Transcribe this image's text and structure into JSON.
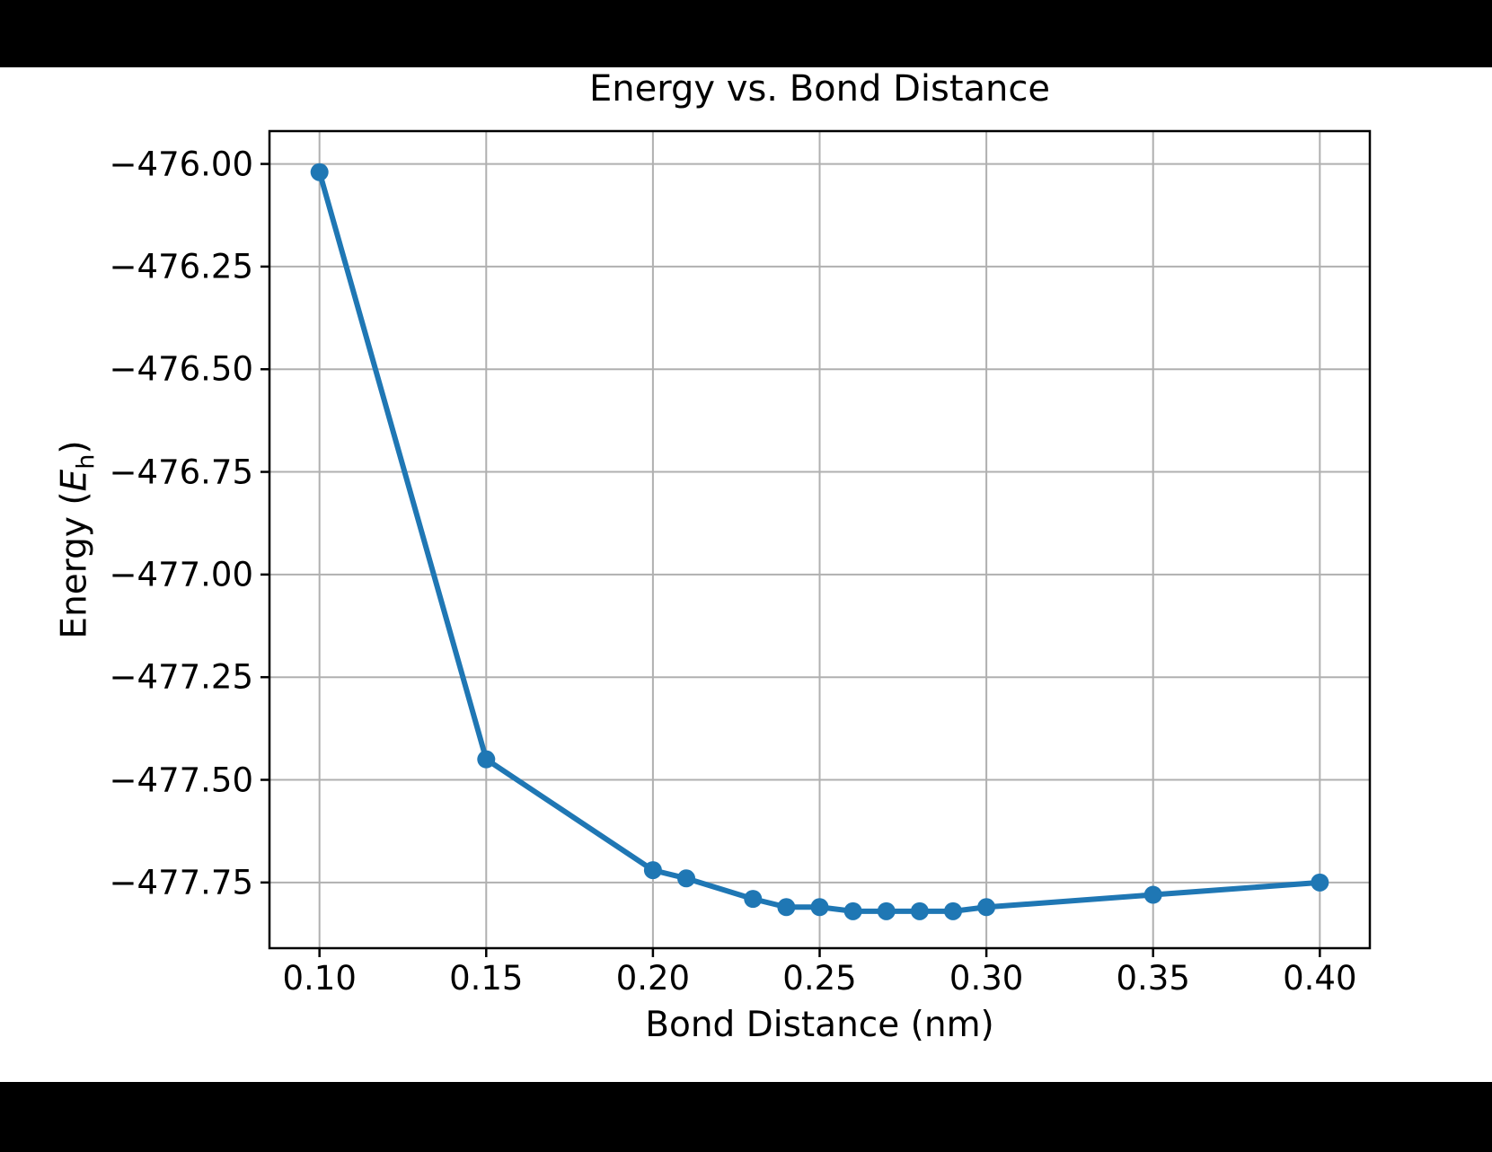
{
  "figure": {
    "outer_background": "#000000",
    "background": "#ffffff",
    "title": "Energy vs. Bond Distance",
    "xlabel": "Bond Distance (nm)",
    "ylabel": {
      "prefix": "Energy (",
      "symbol": "E",
      "subscript": "h",
      "suffix": ")"
    }
  },
  "chart_data": {
    "type": "line",
    "title": "Energy vs. Bond Distance",
    "xlabel": "Bond Distance (nm)",
    "ylabel": "Energy (E_h)",
    "x": [
      0.1,
      0.15,
      0.2,
      0.21,
      0.23,
      0.24,
      0.25,
      0.26,
      0.27,
      0.28,
      0.29,
      0.3,
      0.35,
      0.4
    ],
    "y": [
      -476.02,
      -477.45,
      -477.72,
      -477.74,
      -477.79,
      -477.81,
      -477.81,
      -477.82,
      -477.82,
      -477.82,
      -477.82,
      -477.81,
      -477.78,
      -477.75
    ],
    "xlim": [
      0.085,
      0.415
    ],
    "ylim": [
      -477.91,
      -475.92
    ],
    "xticks": [
      0.1,
      0.15,
      0.2,
      0.25,
      0.3,
      0.35,
      0.4
    ],
    "yticks": [
      -476.0,
      -476.25,
      -476.5,
      -476.75,
      -477.0,
      -477.25,
      -477.5,
      -477.75
    ],
    "xtick_labels": [
      "0.10",
      "0.15",
      "0.20",
      "0.25",
      "0.30",
      "0.35",
      "0.40"
    ],
    "ytick_labels": [
      "−476.00",
      "−476.25",
      "−476.50",
      "−476.75",
      "−477.00",
      "−477.25",
      "−477.50",
      "−477.75"
    ],
    "grid": true,
    "legend": null,
    "line_color": "#1f77b4",
    "marker": "o",
    "marker_color": "#1f77b4",
    "grid_color": "#b0b0b0",
    "spine_color": "#000000",
    "tick_color": "#000000"
  }
}
